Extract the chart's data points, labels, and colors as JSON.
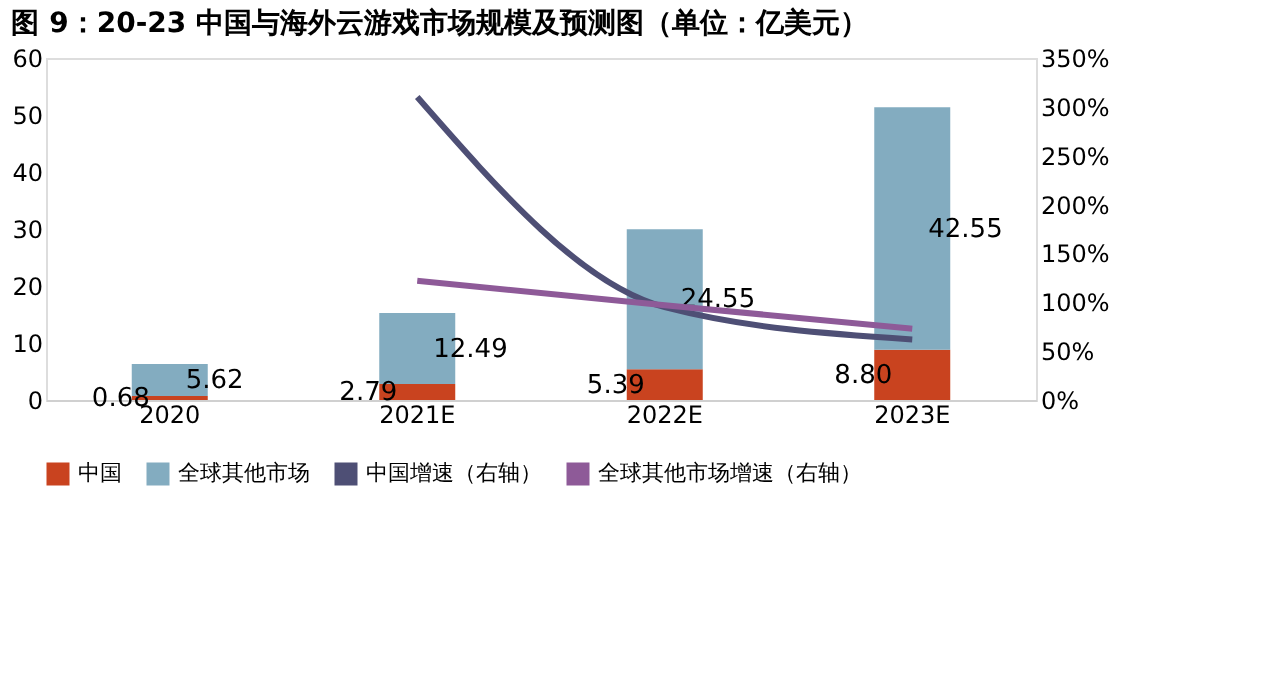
{
  "chart_data": {
    "type": "bar",
    "title": "图 9：20-23 中国与海外云游戏市场规模及预测图（单位：亿美元）",
    "categories": [
      "2020",
      "2021E",
      "2022E",
      "2023E"
    ],
    "stacked": true,
    "series": [
      {
        "name": "中国",
        "color": "#c9431f",
        "values": [
          0.68,
          2.79,
          5.39,
          8.8
        ],
        "value_labels": [
          "0.68",
          "2.79",
          "5.39",
          "8.80"
        ]
      },
      {
        "name": "全球其他市场",
        "color": "#83acc0",
        "values": [
          5.62,
          12.49,
          24.55,
          42.55
        ],
        "value_labels": [
          "5.62",
          "12.49",
          "24.55",
          "42.55"
        ]
      },
      {
        "name": "中国增速（右轴）",
        "type": "line",
        "axis": "y2",
        "color": "#4e4f75",
        "values": [
          null,
          310,
          95,
          62
        ]
      },
      {
        "name": "全球其他市场增速（右轴）",
        "type": "line",
        "axis": "y2",
        "color": "#8e5a98",
        "values": [
          null,
          122,
          97,
          73
        ]
      }
    ],
    "ylim": [
      0,
      60
    ],
    "yticks": [
      0,
      10,
      20,
      30,
      40,
      50,
      60
    ],
    "y2lim": [
      0,
      350
    ],
    "y2ticks": [
      {
        "value": 0,
        "label": "0%"
      },
      {
        "value": 50,
        "label": "50%"
      },
      {
        "value": 100,
        "label": "100%"
      },
      {
        "value": 150,
        "label": "150%"
      },
      {
        "value": 200,
        "label": "200%"
      },
      {
        "value": 250,
        "label": "250%"
      },
      {
        "value": 300,
        "label": "300%"
      },
      {
        "value": 350,
        "label": "350%"
      }
    ],
    "legend": "bottom",
    "grid": false
  }
}
